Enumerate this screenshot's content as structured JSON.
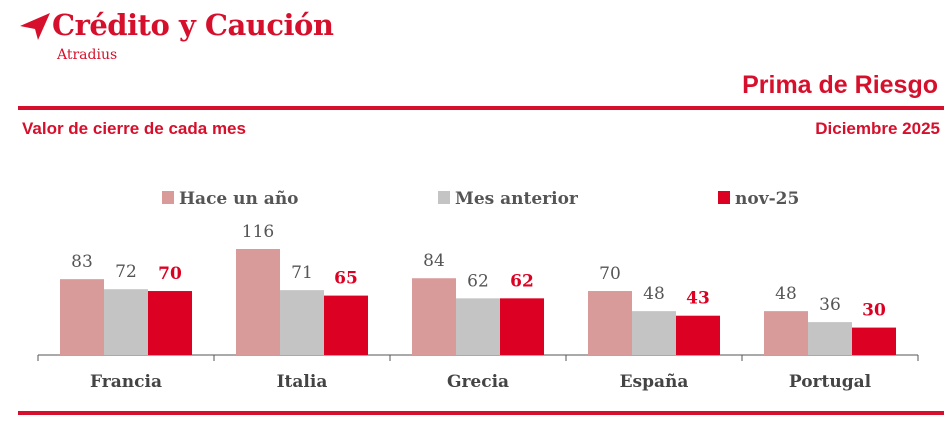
{
  "header": {
    "brand": "Crédito y Caución",
    "brand_sub": "Atradius",
    "report_title": "Prima de Riesgo",
    "subtitle": "Valor de cierre de cada mes",
    "period": "Diciembre 2025"
  },
  "colors": {
    "brand": "#d6102c",
    "series": [
      "#d99a9a",
      "#c4c4c4",
      "#dc0023"
    ]
  },
  "chart_data": {
    "type": "bar",
    "categories": [
      "Francia",
      "Italia",
      "Grecia",
      "España",
      "Portugal"
    ],
    "series": [
      {
        "name": "Hace un año",
        "values": [
          83,
          116,
          84,
          70,
          48
        ]
      },
      {
        "name": "Mes anterior",
        "values": [
          72,
          71,
          62,
          48,
          36
        ]
      },
      {
        "name": "nov-25",
        "values": [
          70,
          65,
          62,
          43,
          30
        ]
      }
    ],
    "ylim": [
      0,
      125
    ],
    "grid": false,
    "legend": "top"
  }
}
